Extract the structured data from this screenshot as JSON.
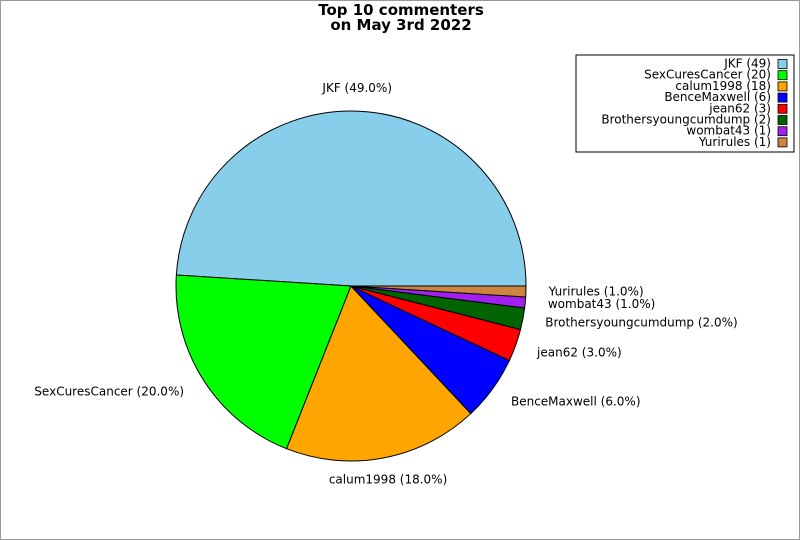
{
  "chart_data": {
    "type": "pie",
    "title": "Top 10 commenters\non May 3rd 2022",
    "legend_labels": [
      "JKF (49)",
      "SexCuresCancer (20)",
      "calum1998 (18)",
      "BenceMaxwell (6)",
      "jean62 (3)",
      "Brothersyoungcumdump (2)",
      "wombat43 (1)",
      "Yurirules (1)"
    ],
    "values": [
      49,
      20,
      18,
      6,
      3,
      2,
      1,
      1
    ],
    "value_labels": [
      "JKF (49.0%)",
      "SexCuresCancer (20.0%)",
      "calum1998 (18.0%)",
      "BenceMaxwell (6.0%)",
      "jean62 (3.0%)",
      "Brothersyoungcumdump (2.0%)",
      "wombat43 (1.0%)",
      "Yurirules (1.0%)"
    ],
    "colors": [
      "#87ceeb",
      "#00ff00",
      "#ffa500",
      "#0000ff",
      "#ff0000",
      "#006400",
      "#a020f0",
      "#cd853f"
    ],
    "legend": "upper right"
  }
}
